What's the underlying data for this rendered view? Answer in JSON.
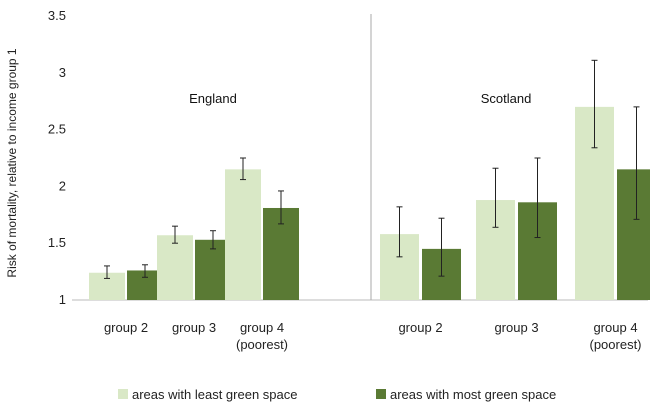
{
  "chart_data": {
    "type": "bar",
    "ylabel": "Risk of mortality, relative to income group 1",
    "ylim": [
      1,
      3.5
    ],
    "yticks": [
      "1",
      "1.5",
      "2",
      "2.5",
      "3",
      "3.5"
    ],
    "grid": false,
    "legend_placement": "bottom",
    "series": [
      {
        "name": "areas with least green space",
        "color": "#d9e8c6"
      },
      {
        "name": "areas with most green space",
        "color": "#5a7a34"
      }
    ],
    "panels": [
      {
        "label": "England",
        "categories": [
          {
            "lines": [
              "group 2"
            ]
          },
          {
            "lines": [
              "group 3"
            ]
          },
          {
            "lines": [
              "group 4",
              "(poorest)"
            ]
          }
        ],
        "values": [
          [
            1.24,
            1.57,
            2.15
          ],
          [
            1.26,
            1.53,
            1.81
          ]
        ],
        "errors": [
          [
            [
              1.19,
              1.3
            ],
            [
              1.5,
              1.65
            ],
            [
              2.06,
              2.25
            ]
          ],
          [
            [
              1.2,
              1.31
            ],
            [
              1.45,
              1.61
            ],
            [
              1.67,
              1.96
            ]
          ]
        ]
      },
      {
        "label": "Scotland",
        "categories": [
          {
            "lines": [
              "group 2"
            ]
          },
          {
            "lines": [
              "group 3"
            ]
          },
          {
            "lines": [
              "group 4",
              "(poorest)"
            ]
          }
        ],
        "values": [
          [
            1.58,
            1.88,
            2.7
          ],
          [
            1.45,
            1.86,
            2.15
          ]
        ],
        "errors": [
          [
            [
              1.38,
              1.82
            ],
            [
              1.64,
              2.16
            ],
            [
              2.34,
              3.11
            ]
          ],
          [
            [
              1.21,
              1.72
            ],
            [
              1.55,
              2.25
            ],
            [
              1.71,
              2.7
            ]
          ]
        ]
      }
    ]
  }
}
